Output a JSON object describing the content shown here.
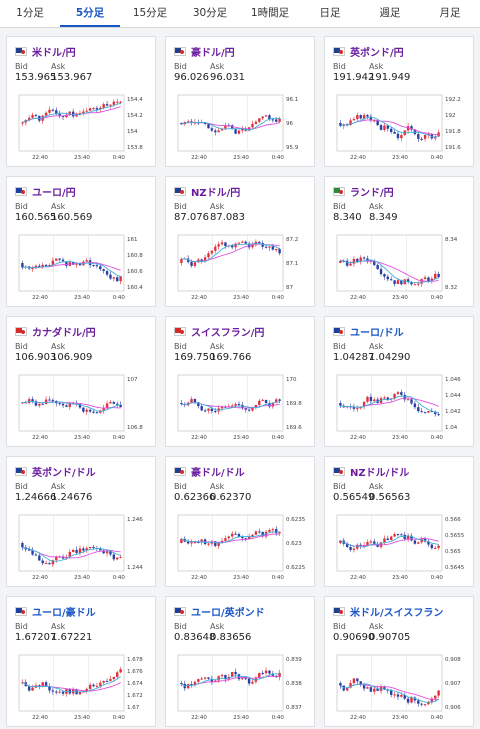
{
  "tabs": [
    "1分足",
    "5分足",
    "15分足",
    "30分足",
    "1時間足",
    "日足",
    "週足",
    "月足"
  ],
  "active_tab": 1,
  "bid_label": "Bid",
  "ask_label": "Ask",
  "cards": [
    {
      "pair": "米ドル/円",
      "bid": "153.965",
      "ask": "153.967",
      "flags": [
        "#1f3f8f",
        "#fff"
      ],
      "ticks": [
        "154.4",
        "154.2",
        "154",
        "153.8"
      ],
      "seed": 1,
      "color": "purple"
    },
    {
      "pair": "豪ドル/円",
      "bid": "96.026",
      "ask": "96.031",
      "flags": [
        "#1f3f8f",
        "#fff"
      ],
      "ticks": [
        "96.1",
        "96",
        "95.9"
      ],
      "seed": 2,
      "color": "purple"
    },
    {
      "pair": "英ポンド/円",
      "bid": "191.942",
      "ask": "191.949",
      "flags": [
        "#1f3f8f",
        "#fff"
      ],
      "ticks": [
        "192.2",
        "192",
        "191.8",
        "191.6"
      ],
      "seed": 3,
      "color": "purple"
    },
    {
      "pair": "ユーロ/円",
      "bid": "160.565",
      "ask": "160.569",
      "flags": [
        "#1a3f9f",
        "#fff"
      ],
      "ticks": [
        "161",
        "160.8",
        "160.6",
        "160.4"
      ],
      "seed": 4,
      "color": "purple"
    },
    {
      "pair": "NZドル/円",
      "bid": "87.076",
      "ask": "87.083",
      "flags": [
        "#1f3f8f",
        "#fff"
      ],
      "ticks": [
        "87.2",
        "87.1",
        "87"
      ],
      "seed": 5,
      "color": "purple"
    },
    {
      "pair": "ランド/円",
      "bid": "8.340",
      "ask": "8.349",
      "flags": [
        "#2d8a3a",
        "#fff"
      ],
      "ticks": [
        "8.34",
        "8.32"
      ],
      "seed": 6,
      "color": "purple"
    },
    {
      "pair": "カナダドル/円",
      "bid": "106.903",
      "ask": "106.909",
      "flags": [
        "#d42a2a",
        "#fff"
      ],
      "ticks": [
        "107",
        "106.8"
      ],
      "seed": 7,
      "color": "purple"
    },
    {
      "pair": "スイスフラン/円",
      "bid": "169.750",
      "ask": "169.766",
      "flags": [
        "#d42a2a",
        "#fff"
      ],
      "ticks": [
        "170",
        "169.8",
        "169.6"
      ],
      "seed": 8,
      "color": "purple"
    },
    {
      "pair": "ユーロ/ドル",
      "bid": "1.04287",
      "ask": "1.04290",
      "flags": [
        "#1a3f9f",
        "#fff"
      ],
      "ticks": [
        "1.046",
        "1.044",
        "1.042",
        "1.04"
      ],
      "seed": 9,
      "color": "blue"
    },
    {
      "pair": "英ポンド/ドル",
      "bid": "1.24666",
      "ask": "1.24676",
      "flags": [
        "#1f3f8f",
        "#fff"
      ],
      "ticks": [
        "1.246",
        "1.244"
      ],
      "seed": 10,
      "color": "purple"
    },
    {
      "pair": "豪ドル/ドル",
      "bid": "0.62366",
      "ask": "0.62370",
      "flags": [
        "#1f3f8f",
        "#fff"
      ],
      "ticks": [
        "0.6235",
        "0.623",
        "0.6225"
      ],
      "seed": 11,
      "color": "purple"
    },
    {
      "pair": "NZドル/ドル",
      "bid": "0.56549",
      "ask": "0.56563",
      "flags": [
        "#1f3f8f",
        "#fff"
      ],
      "ticks": [
        "0.566",
        "0.5655",
        "0.565",
        "0.5645"
      ],
      "seed": 12,
      "color": "purple"
    },
    {
      "pair": "ユーロ/豪ドル",
      "bid": "1.67207",
      "ask": "1.67221",
      "flags": [
        "#1a3f9f",
        "#fff"
      ],
      "ticks": [
        "1.678",
        "1.676",
        "1.674",
        "1.672",
        "1.67"
      ],
      "seed": 13,
      "color": "blue"
    },
    {
      "pair": "ユーロ/英ポンド",
      "bid": "0.83648",
      "ask": "0.83656",
      "flags": [
        "#1a3f9f",
        "#fff"
      ],
      "ticks": [
        "0.839",
        "0.838",
        "0.837"
      ],
      "seed": 14,
      "color": "blue"
    },
    {
      "pair": "米ドル/スイスフラン",
      "bid": "0.90690",
      "ask": "0.90705",
      "flags": [
        "#1f3f8f",
        "#fff"
      ],
      "ticks": [
        "0.908",
        "0.907",
        "0.906"
      ],
      "seed": 15,
      "color": "blue"
    }
  ],
  "time_labels": [
    "22:40",
    "23:40",
    "0:40"
  ],
  "colors": {
    "up": "#e0303a",
    "down": "#2a3fa6",
    "ma1": "#e24fe0",
    "ma2": "#3fb0d8",
    "active": "#1a57c6"
  }
}
